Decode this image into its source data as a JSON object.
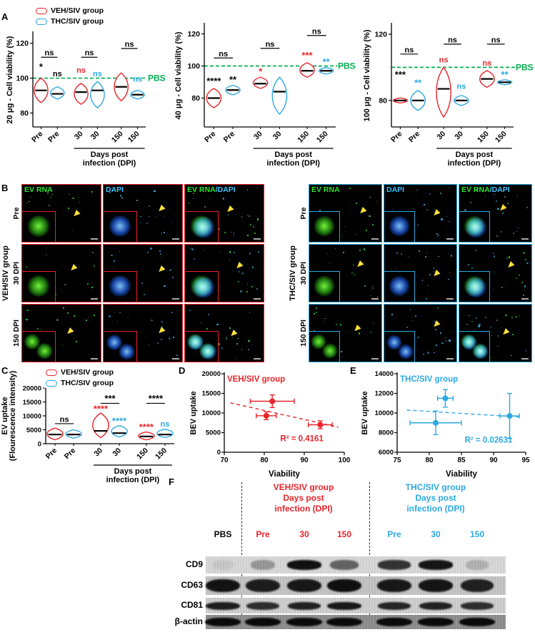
{
  "colors": {
    "veh": "#e8242a",
    "thc": "#2ca9e1",
    "green": "#00b050",
    "black": "#000000",
    "ev_green": "#2ee52e",
    "dapi_blue": "#3cc5ff",
    "yellow": "#ffe13a"
  },
  "panels": {
    "a": "A",
    "b": "B",
    "c": "C",
    "d": "D",
    "e": "E",
    "f": "F"
  },
  "legend": {
    "items": [
      {
        "label": "VEH/SIV group",
        "color": "veh"
      },
      {
        "label": "THC/SIV group",
        "color": "thc"
      }
    ]
  },
  "chart_data": [
    {
      "id": "A1",
      "type": "violin",
      "ylabel_lines": [
        "20 μg - Cell viability (%)"
      ],
      "ylim": [
        72,
        126
      ],
      "yticks": [
        80,
        100,
        120
      ],
      "categories": [
        "Pre",
        "Pre",
        "30",
        "30",
        "150",
        "150"
      ],
      "xlabel_lines": [
        "Days post",
        "infection (DPI)"
      ],
      "reference_line": {
        "y": 100,
        "label": "PBS"
      },
      "violins": [
        {
          "group": "VEH",
          "median": 93,
          "lo": 86,
          "hi": 100
        },
        {
          "group": "THC",
          "median": 91,
          "lo": 88,
          "hi": 95
        },
        {
          "group": "VEH",
          "median": 92,
          "lo": 85,
          "hi": 97
        },
        {
          "group": "THC",
          "median": 93,
          "lo": 83,
          "hi": 98
        },
        {
          "group": "VEH",
          "median": 95,
          "lo": 87,
          "hi": 103
        },
        {
          "group": "THC",
          "median": 90.5,
          "lo": 88,
          "hi": 93
        }
      ],
      "pair_brackets": [
        {
          "groups": [
            0,
            1
          ],
          "text": "ns",
          "y": 112
        },
        {
          "groups": [
            2,
            3
          ],
          "text": "ns",
          "y": 112
        },
        {
          "groups": [
            4,
            5
          ],
          "text": "ns",
          "y": 117
        }
      ],
      "point_annotations": [
        {
          "group": 0,
          "text": "*",
          "color": "black",
          "y": 106
        },
        {
          "group": 1,
          "text": "ns",
          "color": "black",
          "y": 101
        },
        {
          "group": 2,
          "text": "ns",
          "color": "veh",
          "y": 103
        },
        {
          "group": 3,
          "text": "ns",
          "color": "thc",
          "y": 101
        },
        {
          "group": 5,
          "text": "ns",
          "color": "thc",
          "y": 98
        }
      ]
    },
    {
      "id": "A2",
      "type": "violin",
      "ylabel_lines": [
        "40 μg - Cell viability (%)"
      ],
      "ylim": [
        62,
        126
      ],
      "yticks": [
        80,
        100,
        120
      ],
      "categories": [
        "Pre",
        "Pre",
        "30",
        "30",
        "150",
        "150"
      ],
      "xlabel_lines": [
        "Days post",
        "infection (DPI)"
      ],
      "reference_line": {
        "y": 100,
        "label": "PBS"
      },
      "violins": [
        {
          "group": "VEH",
          "median": 80,
          "lo": 74,
          "hi": 86
        },
        {
          "group": "THC",
          "median": 85,
          "lo": 82,
          "hi": 88
        },
        {
          "group": "VEH",
          "median": 89,
          "lo": 86,
          "hi": 93
        },
        {
          "group": "THC",
          "median": 84,
          "lo": 70,
          "hi": 93
        },
        {
          "group": "VEH",
          "median": 97,
          "lo": 93,
          "hi": 102
        },
        {
          "group": "THC",
          "median": 97,
          "lo": 95,
          "hi": 99
        }
      ],
      "pair_brackets": [
        {
          "groups": [
            0,
            1
          ],
          "text": "ns",
          "y": 105
        },
        {
          "groups": [
            2,
            3
          ],
          "text": "ns",
          "y": 111
        },
        {
          "groups": [
            4,
            5
          ],
          "text": "ns",
          "y": 119
        }
      ],
      "point_annotations": [
        {
          "group": 0,
          "text": "****",
          "color": "black",
          "y": 90
        },
        {
          "group": 1,
          "text": "**",
          "color": "black",
          "y": 91
        },
        {
          "group": 2,
          "text": "*",
          "color": "veh",
          "y": 96
        },
        {
          "group": 4,
          "text": "***",
          "color": "veh",
          "y": 106
        },
        {
          "group": 5,
          "text": "**",
          "color": "thc",
          "y": 102
        }
      ]
    },
    {
      "id": "A3",
      "type": "violin",
      "ylabel_lines": [
        "100 μg - Cell viability (%)"
      ],
      "ylim": [
        64,
        126
      ],
      "yticks": [
        80,
        120
      ],
      "categories": [
        "Pre",
        "Pre",
        "30",
        "30",
        "150",
        "150"
      ],
      "xlabel_lines": [
        "Days post",
        "infection (DPI)"
      ],
      "reference_line": {
        "y": 100,
        "label": "PBS"
      },
      "violins": [
        {
          "group": "VEH",
          "median": 80,
          "lo": 78.5,
          "hi": 81.5
        },
        {
          "group": "THC",
          "median": 80,
          "lo": 74,
          "hi": 86
        },
        {
          "group": "VEH",
          "median": 87,
          "lo": 70,
          "hi": 100
        },
        {
          "group": "THC",
          "median": 80,
          "lo": 77,
          "hi": 83
        },
        {
          "group": "VEH",
          "median": 93,
          "lo": 88,
          "hi": 98
        },
        {
          "group": "THC",
          "median": 91,
          "lo": 89.5,
          "hi": 92.5
        }
      ],
      "pair_brackets": [
        {
          "groups": [
            0,
            1
          ],
          "text": "ns",
          "y": 108
        },
        {
          "groups": [
            2,
            3
          ],
          "text": "ns",
          "y": 114
        },
        {
          "groups": [
            4,
            5
          ],
          "text": "ns",
          "y": 114
        }
      ],
      "point_annotations": [
        {
          "group": 0,
          "text": "***",
          "color": "black",
          "y": 95
        },
        {
          "group": 1,
          "text": "**",
          "color": "thc",
          "y": 90
        },
        {
          "group": 2,
          "text": "ns",
          "color": "veh",
          "y": 103
        },
        {
          "group": 3,
          "text": "ns",
          "color": "thc",
          "y": 87
        },
        {
          "group": 4,
          "text": "ns",
          "color": "veh",
          "y": 101
        },
        {
          "group": 5,
          "text": "**",
          "color": "thc",
          "y": 95
        }
      ]
    },
    {
      "id": "C",
      "type": "violin",
      "ylabel_lines": [
        "EV uptake",
        "(Flourescence intensity)"
      ],
      "ylim": [
        0,
        20000
      ],
      "yticks": [
        0,
        5000,
        10000,
        15000,
        20000
      ],
      "categories": [
        "Pre",
        "Pre",
        "30",
        "30",
        "150",
        "150"
      ],
      "xlabel_lines": [
        "Days post",
        "infection (DPI)"
      ],
      "violins": [
        {
          "group": "VEH",
          "median": 3300,
          "lo": 1400,
          "hi": 5600
        },
        {
          "group": "THC",
          "median": 3300,
          "lo": 2000,
          "hi": 5000
        },
        {
          "group": "VEH",
          "median": 4600,
          "lo": 2200,
          "hi": 11000
        },
        {
          "group": "THC",
          "median": 3800,
          "lo": 2400,
          "hi": 6500
        },
        {
          "group": "VEH",
          "median": 2600,
          "lo": 1400,
          "hi": 4200
        },
        {
          "group": "THC",
          "median": 3300,
          "lo": 2200,
          "hi": 5200
        }
      ],
      "pair_brackets": [
        {
          "groups": [
            0,
            1
          ],
          "text": "ns",
          "y": 7200
        },
        {
          "groups": [
            2,
            3
          ],
          "text": "***",
          "y": 14500
        },
        {
          "groups": [
            4,
            5
          ],
          "text": "****",
          "y": 14500
        }
      ],
      "point_annotations": [
        {
          "group": 2,
          "text": "****",
          "color": "veh",
          "y": 12200
        },
        {
          "group": 3,
          "text": "****",
          "color": "thc",
          "y": 7800
        },
        {
          "group": 4,
          "text": "****",
          "color": "veh",
          "y": 5600
        },
        {
          "group": 5,
          "text": "ns",
          "color": "thc",
          "y": 6200
        }
      ]
    },
    {
      "id": "D",
      "type": "scatter",
      "title": "VEH/SIV group",
      "title_color": "veh",
      "color": "veh",
      "xlabel": "Viability",
      "ylabel": "BEV uptake",
      "xlim": [
        70,
        100
      ],
      "xticks": [
        70,
        80,
        90,
        100
      ],
      "ylim": [
        0,
        20000
      ],
      "yticks": [
        0,
        5000,
        10000,
        15000,
        20000
      ],
      "points": [
        {
          "x": 80.5,
          "y": 9300,
          "xerr": 2.5,
          "yerr": 1000
        },
        {
          "x": 82,
          "y": 13000,
          "xerr": 5.5,
          "yerr": 1600
        },
        {
          "x": 94,
          "y": 7000,
          "xerr": 3,
          "yerr": 1000
        }
      ],
      "trend": {
        "x1": 71.5,
        "y1": 12600,
        "x2": 98.5,
        "y2": 6400
      },
      "r2": "R² = 0.4161",
      "r2_pos": [
        84,
        2800
      ]
    },
    {
      "id": "E",
      "type": "scatter",
      "title": "THC/SIV group",
      "title_color": "thc",
      "color": "thc",
      "xlabel": "Viability",
      "ylabel": "BEV uptake",
      "xlim": [
        75,
        95
      ],
      "xticks": [
        75,
        80,
        85,
        90,
        95
      ],
      "ylim": [
        6000,
        14000
      ],
      "yticks": [
        6000,
        8000,
        10000,
        12000,
        14000
      ],
      "points": [
        {
          "x": 81,
          "y": 9000,
          "xerr": 4,
          "yerr": 1200
        },
        {
          "x": 82.5,
          "y": 11500,
          "xerr": 1.2,
          "yerr": 900
        },
        {
          "x": 92.5,
          "y": 9700,
          "xerr": 1.5,
          "yerr": 2300
        }
      ],
      "trend": {
        "x1": 76.5,
        "y1": 10300,
        "x2": 94,
        "y2": 9600
      },
      "r2": "R² = 0.02631",
      "r2_pos": [
        85.5,
        7000
      ]
    }
  ],
  "microscopy": {
    "groups": [
      {
        "id": "veh",
        "name": "VEH/SIV group",
        "color": "veh",
        "rows": [
          "Pre",
          "30 DPI",
          "150 DPI"
        ],
        "cols": [
          {
            "parts": [
              {
                "t": "EV RNA",
                "c": "ev_green"
              }
            ]
          },
          {
            "parts": [
              {
                "t": "DAPI",
                "c": "dapi_blue"
              }
            ]
          },
          {
            "parts": [
              {
                "t": "EV RNA",
                "c": "ev_green"
              },
              {
                "t": "/DAPI",
                "c": "dapi_blue"
              }
            ]
          }
        ]
      },
      {
        "id": "thc",
        "name": "THC/SIV group",
        "color": "thc",
        "rows": [
          "Pre",
          "30 DPI",
          "150 DPI"
        ],
        "cols": [
          {
            "parts": [
              {
                "t": "EV RNA",
                "c": "ev_green"
              }
            ]
          },
          {
            "parts": [
              {
                "t": "DAPI",
                "c": "dapi_blue"
              }
            ]
          },
          {
            "parts": [
              {
                "t": "EV RNA",
                "c": "ev_green"
              },
              {
                "t": "/DAPI",
                "c": "dapi_blue"
              }
            ]
          }
        ]
      }
    ]
  },
  "blot": {
    "group_headers": [
      {
        "lines": [
          "VEH/SIV group",
          "Days post",
          "infection (DPI)"
        ],
        "color": "veh"
      },
      {
        "lines": [
          "THC/SIV group",
          "Days post",
          "infection (DPI)"
        ],
        "color": "thc"
      }
    ],
    "lanes": [
      {
        "label": "PBS",
        "color": "black"
      },
      {
        "label": "Pre",
        "color": "veh"
      },
      {
        "label": "30",
        "color": "veh"
      },
      {
        "label": "150",
        "color": "veh"
      },
      {
        "label": "Pre",
        "color": "thc"
      },
      {
        "label": "30",
        "color": "thc"
      },
      {
        "label": "150",
        "color": "thc"
      }
    ],
    "proteins": [
      {
        "name": "CD9",
        "bands": [
          0.07,
          0.3,
          0.95,
          0.55,
          0.78,
          0.92,
          0.18
        ],
        "bg": "#d8d8d8",
        "bh": 0.55
      },
      {
        "name": "CD63",
        "bands": [
          0.93,
          0.88,
          0.9,
          0.95,
          0.9,
          0.92,
          0.86
        ],
        "bg": "#c4c4c4",
        "bh": 0.72
      },
      {
        "name": "CD81",
        "bands": [
          0.88,
          0.8,
          0.86,
          0.9,
          0.84,
          0.86,
          0.8
        ],
        "bg": "#cfcfcf",
        "bh": 0.5
      },
      {
        "name": "β-actin",
        "bands": [
          0.97,
          0.97,
          0.97,
          0.97,
          0.97,
          0.97,
          0.97
        ],
        "bg": "#8e8e8e",
        "bh": 0.6
      }
    ]
  }
}
